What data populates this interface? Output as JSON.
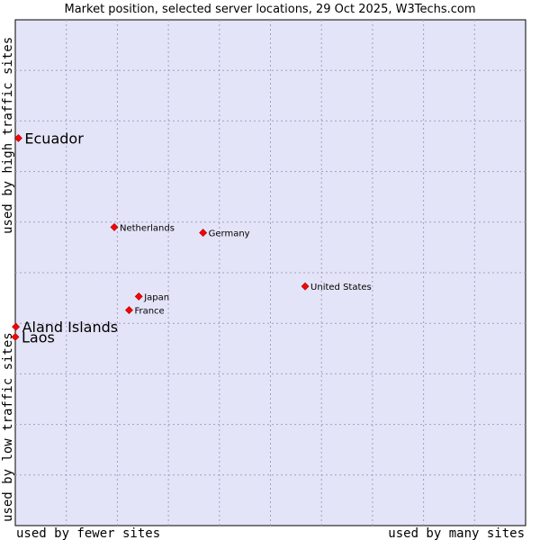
{
  "chart_data": {
    "type": "scatter",
    "title": "Market position, selected server locations, 29 Oct 2025, W3Techs.com",
    "xlabel_left": "used by fewer sites",
    "xlabel_right": "used by many sites",
    "ylabel_bottom": "used by low traffic sites",
    "ylabel_top": "used by high traffic sites",
    "xlim": [
      0,
      100
    ],
    "ylim": [
      0,
      100
    ],
    "grid": true,
    "point_color": "#ff0000",
    "plot_background": "#e4e4f8",
    "grid_color": "#a0a0c0",
    "points": [
      {
        "label": "Ecuador",
        "x": 0.6,
        "y": 76.6,
        "emphasis": true
      },
      {
        "label": "Netherlands",
        "x": 19.4,
        "y": 59.0,
        "emphasis": false
      },
      {
        "label": "Germany",
        "x": 36.8,
        "y": 57.9,
        "emphasis": false
      },
      {
        "label": "United States",
        "x": 56.8,
        "y": 47.3,
        "emphasis": false
      },
      {
        "label": "Japan",
        "x": 24.2,
        "y": 45.3,
        "emphasis": false
      },
      {
        "label": "France",
        "x": 22.3,
        "y": 42.6,
        "emphasis": false
      },
      {
        "label": "Aland Islands",
        "x": 0.1,
        "y": 39.3,
        "emphasis": true
      },
      {
        "label": "Laos",
        "x": 0.0,
        "y": 37.3,
        "emphasis": true
      }
    ]
  }
}
